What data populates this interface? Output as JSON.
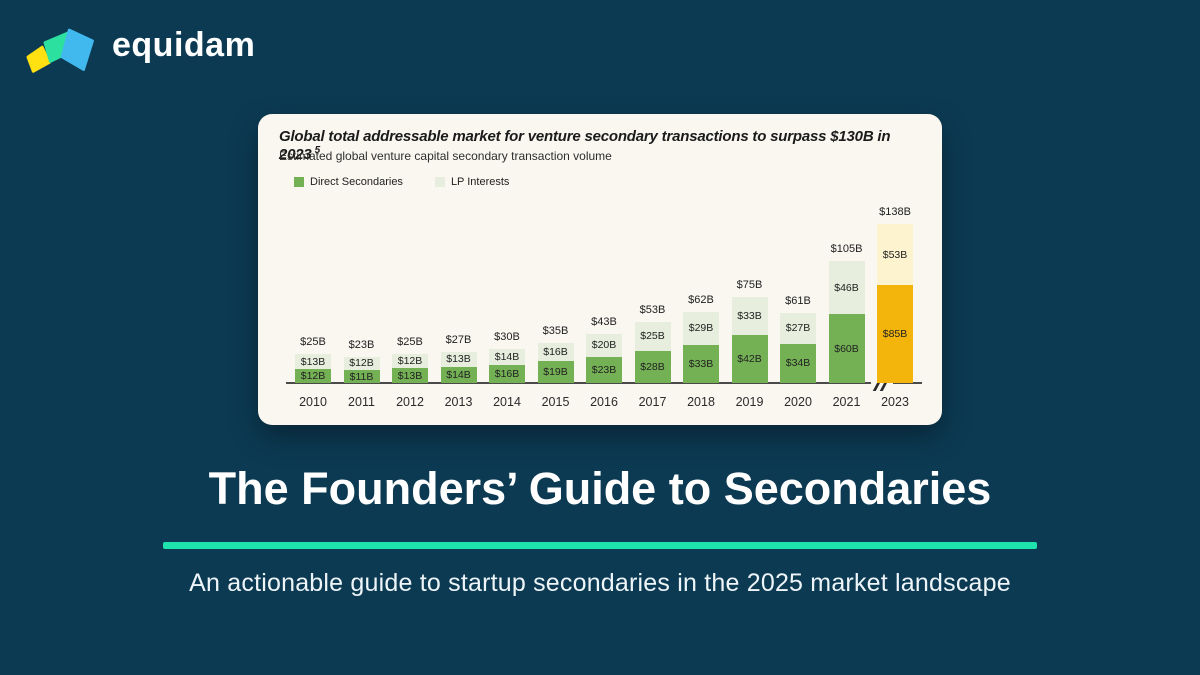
{
  "brand": {
    "name": "equidam"
  },
  "colors": {
    "background": "#0c3a53",
    "card": "#f9f7f0",
    "accent": "#1fe3ad",
    "axis": "#4a4a4a",
    "logo_yellow": "#ffe011",
    "logo_green": "#2ce0a0",
    "logo_blue": "#41b9ef"
  },
  "hero": {
    "title": "The Founders’ Guide to Secondaries",
    "subtitle": "An actionable guide to startup secondaries in the 2025 market landscape"
  },
  "chart_data": {
    "type": "bar",
    "stacked": true,
    "title": "Global total addressable market for venture secondary transactions to surpass $130B in 2023",
    "title_footnote_marker": "5",
    "subtitle": "Estimated global venture capital secondary transaction volume",
    "unit_prefix": "$",
    "unit_suffix": "B",
    "categories": [
      "2010",
      "2011",
      "2012",
      "2013",
      "2014",
      "2015",
      "2016",
      "2017",
      "2018",
      "2019",
      "2020",
      "2021",
      "2023"
    ],
    "series": [
      {
        "name": "Direct Secondaries",
        "color": "#74b155",
        "values": [
          12,
          11,
          13,
          14,
          16,
          19,
          23,
          28,
          33,
          42,
          34,
          60,
          85
        ]
      },
      {
        "name": "LP Interests",
        "color": "#e7eedd",
        "values": [
          13,
          12,
          12,
          13,
          14,
          16,
          20,
          25,
          29,
          33,
          27,
          46,
          53
        ]
      }
    ],
    "totals": [
      25,
      23,
      25,
      27,
      30,
      35,
      43,
      53,
      62,
      75,
      61,
      105,
      138
    ],
    "highlight": {
      "category": "2023",
      "direct_color": "#f3b50c",
      "lp_color": "#fdf3cf"
    },
    "axis_break_after_category": "2021",
    "legend_position": "top-left",
    "grid": false,
    "ylim": [
      0,
      150
    ]
  }
}
